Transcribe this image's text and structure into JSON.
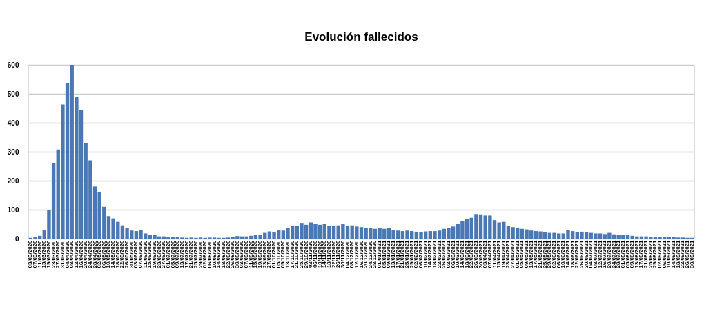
{
  "chart_data": {
    "type": "bar",
    "title": "Evolución fallecidos",
    "categories": [
      "03/03/2020",
      "07/03/2020",
      "11/03/2020",
      "15/03/2020",
      "19/03/2020",
      "23/03/2020",
      "27/03/2020",
      "31/03/2020",
      "04/04/2020",
      "08/04/2020",
      "12/04/2020",
      "16/04/2020",
      "20/04/2020",
      "24/04/2020",
      "28/04/2020",
      "02/05/2020",
      "06/05/2020",
      "10/05/2020",
      "14/05/2020",
      "18/05/2020",
      "22/05/2020",
      "26/05/2020",
      "30/05/2020",
      "03/06/2020",
      "07/06/2020",
      "11/06/2020",
      "15/06/2020",
      "19/06/2020",
      "23/06/2020",
      "27/06/2020",
      "01/07/2020",
      "05/07/2020",
      "09/07/2020",
      "13/07/2020",
      "17/07/2020",
      "21/07/2020",
      "25/07/2020",
      "29/07/2020",
      "02/08/2020",
      "06/08/2020",
      "10/08/2020",
      "14/08/2020",
      "18/08/2020",
      "22/08/2020",
      "26/08/2020",
      "30/08/2020",
      "03/09/2020",
      "07/09/2020",
      "11/09/2020",
      "15/09/2020",
      "19/09/2020",
      "23/09/2020",
      "27/09/2020",
      "01/10/2020",
      "05/10/2020",
      "09/10/2020",
      "13/10/2020",
      "17/10/2020",
      "21/10/2020",
      "25/10/2020",
      "29/10/2020",
      "02/11/2020",
      "06/11/2020",
      "10/11/2020",
      "14/11/2020",
      "18/11/2020",
      "22/11/2020",
      "26/11/2020",
      "30/11/2020",
      "04/12/2020",
      "08/12/2020",
      "12/12/2020",
      "16/12/2020",
      "20/12/2020",
      "24/12/2020",
      "28/12/2020",
      "01/01/2021",
      "05/01/2021",
      "09/01/2021",
      "13/01/2021",
      "17/01/2021",
      "21/01/2021",
      "25/01/2021",
      "29/01/2021",
      "02/02/2021",
      "06/02/2021",
      "10/02/2021",
      "14/02/2021",
      "18/02/2021",
      "22/02/2021",
      "26/02/2021",
      "02/03/2021",
      "06/03/2021",
      "10/03/2021",
      "14/03/2021",
      "18/03/2021",
      "22/03/2021",
      "26/03/2021",
      "30/03/2021",
      "03/04/2021",
      "07/04/2021",
      "11/04/2021",
      "15/04/2021",
      "19/04/2021",
      "23/04/2021",
      "27/04/2021",
      "01/05/2021",
      "05/05/2021",
      "09/05/2021",
      "13/05/2021",
      "17/05/2021",
      "21/05/2021",
      "25/05/2021",
      "29/05/2021",
      "02/06/2021",
      "06/06/2021",
      "10/06/2021",
      "14/06/2021",
      "18/06/2021",
      "22/06/2021",
      "26/06/2021",
      "30/06/2021",
      "04/07/2021",
      "08/07/2021",
      "12/07/2021",
      "16/07/2021",
      "20/07/2021",
      "24/07/2021",
      "28/07/2021",
      "01/08/2021",
      "05/08/2021",
      "09/08/2021",
      "13/08/2021",
      "17/08/2021",
      "21/08/2021",
      "25/08/2021",
      "29/08/2021",
      "02/09/2021",
      "06/09/2021",
      "10/09/2021",
      "14/09/2021",
      "18/09/2021",
      "22/09/2021",
      "26/09/2021",
      "30/09/2021"
    ],
    "values": [
      3,
      5,
      10,
      30,
      100,
      260,
      308,
      463,
      538,
      600,
      490,
      443,
      330,
      270,
      180,
      160,
      110,
      78,
      70,
      58,
      46,
      38,
      28,
      26,
      30,
      18,
      14,
      12,
      8,
      8,
      6,
      5,
      5,
      4,
      3,
      4,
      3,
      4,
      3,
      4,
      4,
      3,
      3,
      4,
      6,
      9,
      8,
      8,
      10,
      12,
      14,
      20,
      25,
      22,
      30,
      28,
      36,
      44,
      44,
      52,
      48,
      56,
      50,
      48,
      50,
      45,
      44,
      46,
      50,
      44,
      46,
      42,
      40,
      38,
      36,
      34,
      36,
      34,
      38,
      30,
      28,
      26,
      28,
      26,
      24,
      22,
      25,
      26,
      26,
      28,
      34,
      38,
      42,
      50,
      62,
      68,
      72,
      85,
      84,
      80,
      80,
      64,
      56,
      58,
      44,
      40,
      36,
      34,
      32,
      28,
      26,
      25,
      22,
      20,
      20,
      18,
      18,
      30,
      26,
      22,
      24,
      22,
      20,
      18,
      18,
      16,
      20,
      15,
      12,
      12,
      14,
      10,
      8,
      8,
      8,
      7,
      6,
      6,
      6,
      5,
      5,
      4,
      4,
      3,
      3
    ],
    "color": "#4a78b5",
    "ylim": [
      0,
      600
    ],
    "yticks": [
      0,
      100,
      200,
      300,
      400,
      500,
      600
    ],
    "grid": "y"
  }
}
